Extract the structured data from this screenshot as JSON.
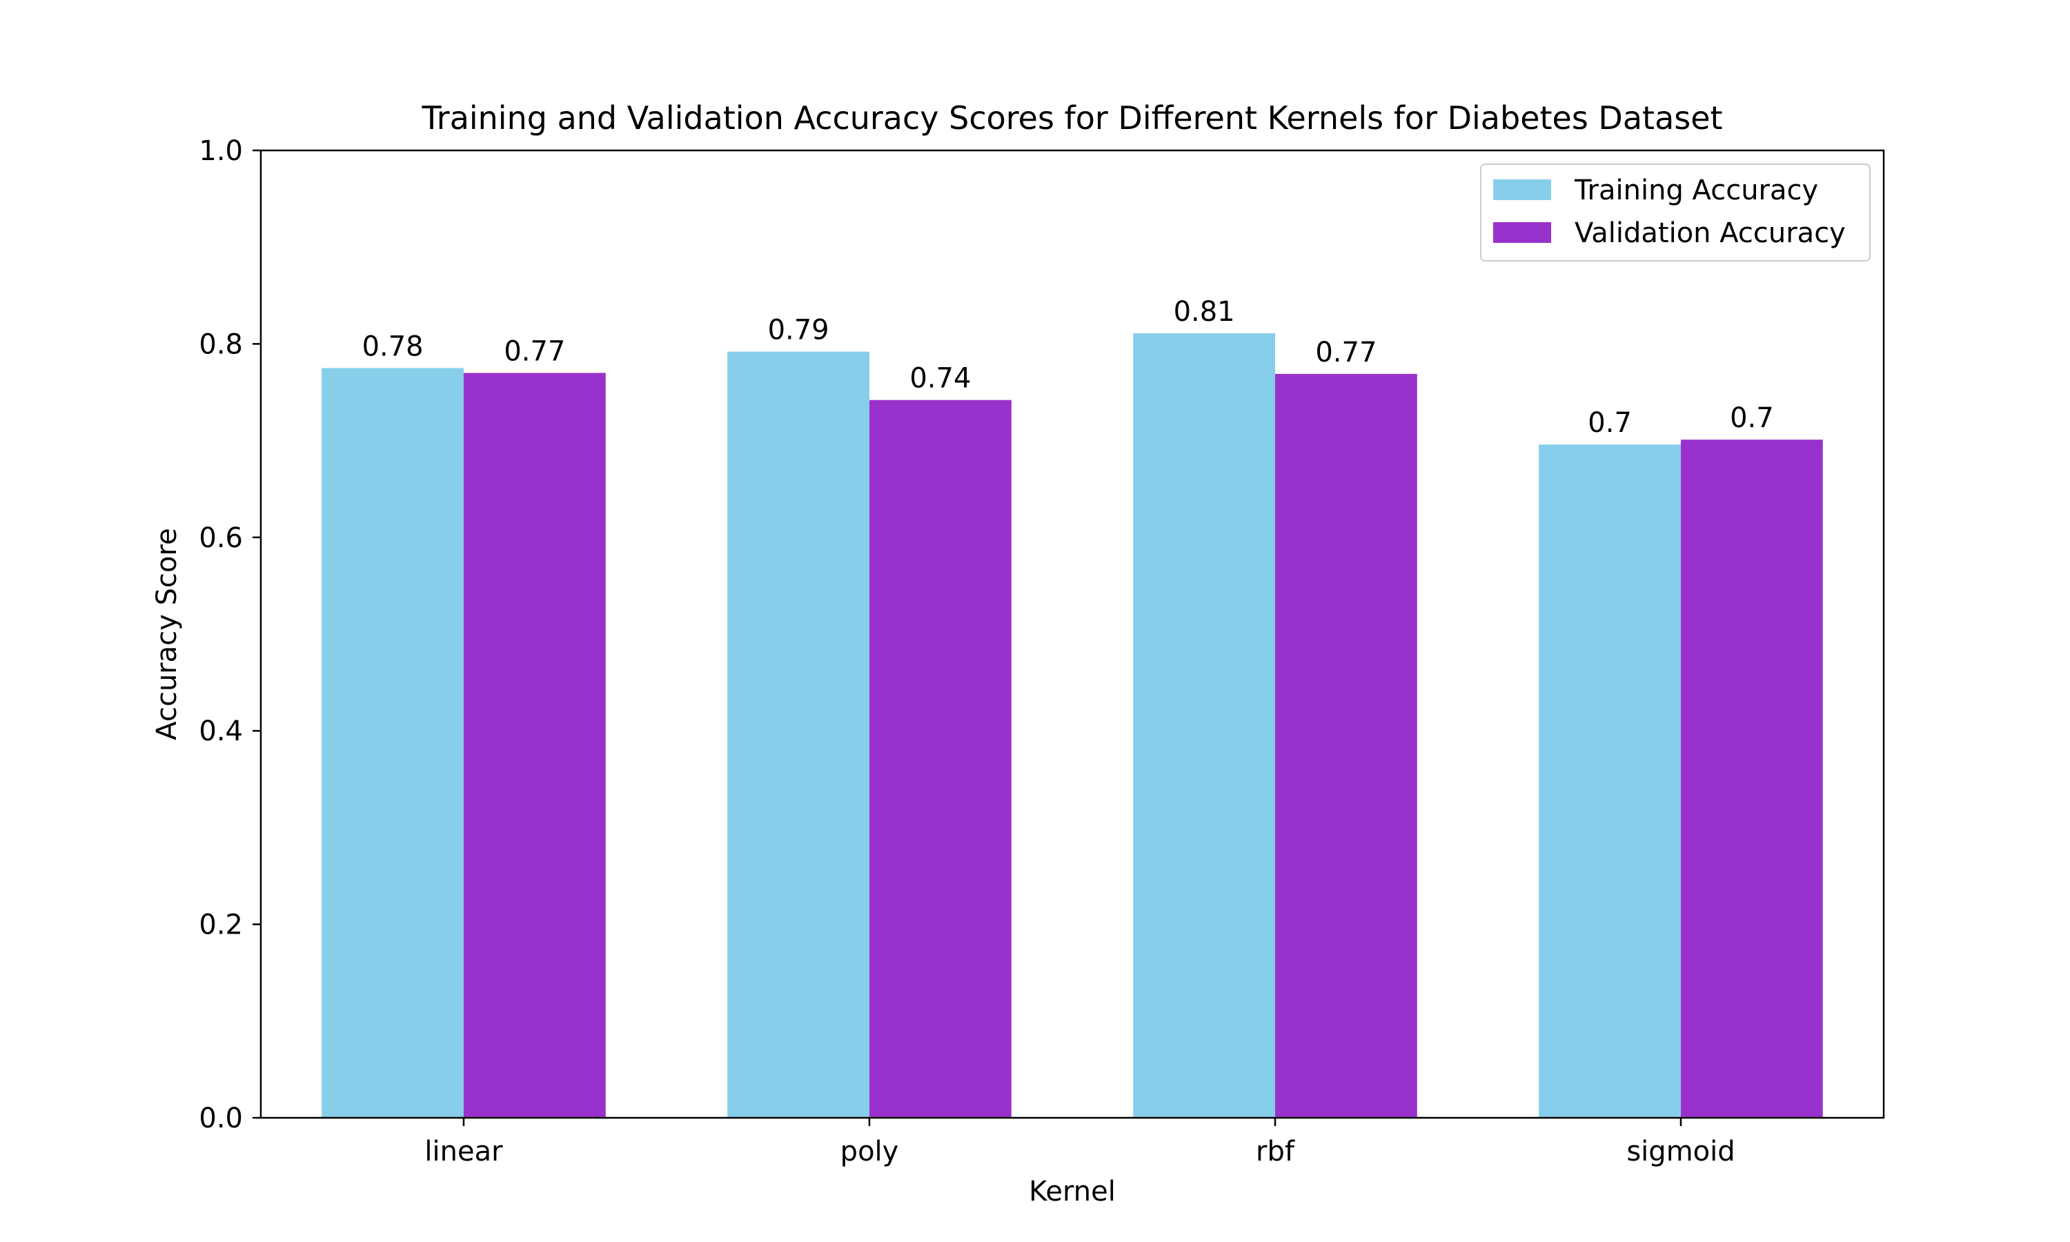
{
  "chart_data": {
    "type": "bar",
    "title": "Training and Validation Accuracy Scores for Different Kernels for Diabetes Dataset",
    "xlabel": "Kernel",
    "ylabel": "Accuracy Score",
    "categories": [
      "linear",
      "poly",
      "rbf",
      "sigmoid"
    ],
    "series": [
      {
        "name": "Training Accuracy",
        "color": "#87ceeb",
        "values": [
          0.775,
          0.792,
          0.811,
          0.696
        ],
        "labels": [
          "0.78",
          "0.79",
          "0.81",
          "0.7"
        ]
      },
      {
        "name": "Validation Accuracy",
        "color": "#9932cc",
        "values": [
          0.77,
          0.742,
          0.769,
          0.701
        ],
        "labels": [
          "0.77",
          "0.74",
          "0.77",
          "0.7"
        ]
      }
    ],
    "ylim": [
      0,
      1
    ],
    "yticks": [
      0.0,
      0.2,
      0.4,
      0.6,
      0.8,
      1.0
    ],
    "ytick_labels": [
      "0.0",
      "0.2",
      "0.4",
      "0.6",
      "0.8",
      "1.0"
    ],
    "grid": false,
    "legend_position": "top-right"
  }
}
